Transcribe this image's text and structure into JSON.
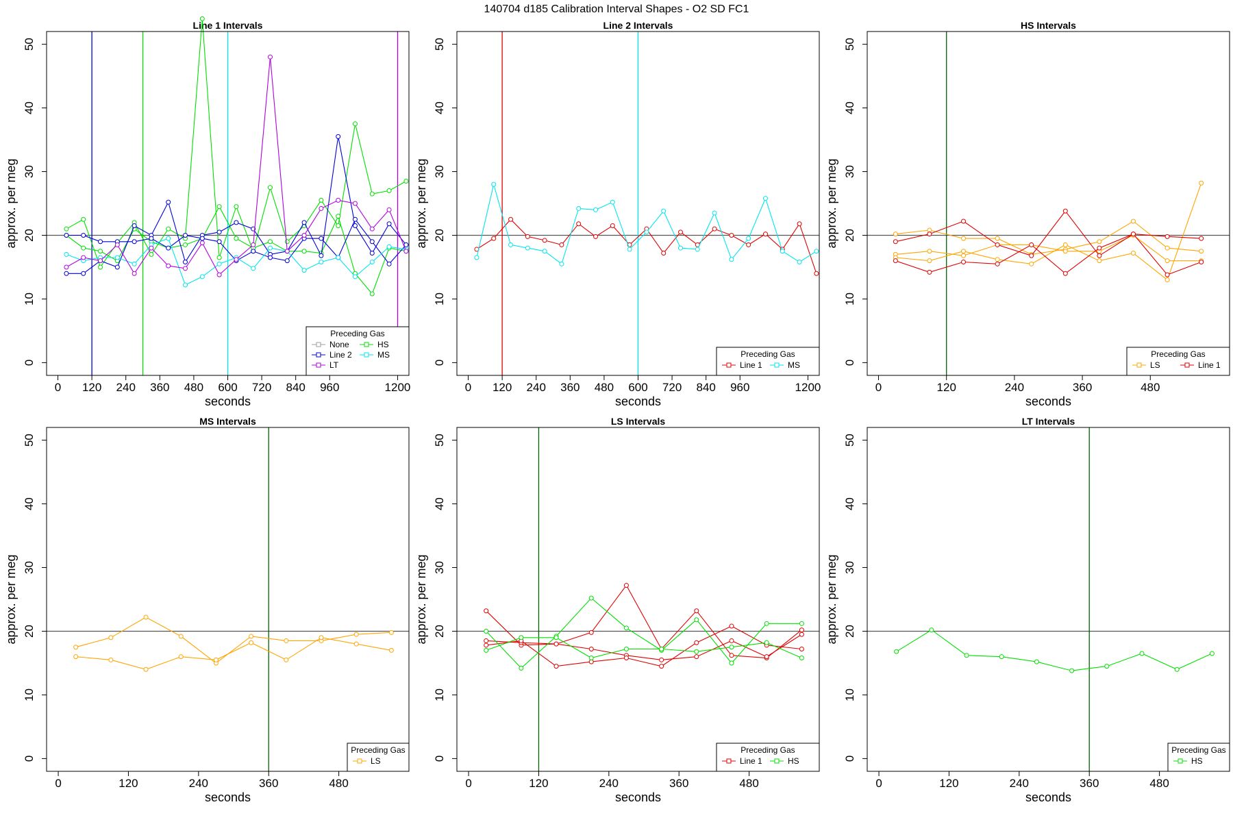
{
  "figure": {
    "title": "140704   d185   Calibration Interval Shapes - O2 SD FC1"
  },
  "colors": {
    "None": "#9e9e9e",
    "HS": "#00e000",
    "Line 2": "#0000d8",
    "MS": "#00e5ee",
    "LT": "#b000e0",
    "Line 1": "#e00000",
    "LS": "#ffa500",
    "vline_default": "#006400",
    "hline": "#555555"
  },
  "chart_data": [
    {
      "type": "line",
      "title": "Line 1 Intervals",
      "xlabel": "seconds",
      "ylabel": "approx. per meg",
      "xlim": [
        -40,
        1240
      ],
      "ylim": [
        -2,
        52
      ],
      "xticks": [
        0,
        120,
        240,
        360,
        480,
        600,
        720,
        840,
        960,
        1200
      ],
      "yticks": [
        0,
        10,
        20,
        30,
        40,
        50
      ],
      "hline": 20,
      "vlines": [
        {
          "x": 120,
          "group": "Line 2"
        },
        {
          "x": 300,
          "group": "HS"
        },
        {
          "x": 600,
          "group": "MS"
        },
        {
          "x": 1200,
          "group": "LT"
        }
      ],
      "legend": {
        "title": "Preceding Gas",
        "position": "bottom-right",
        "columns": 2,
        "entries": [
          "None",
          "HS",
          "Line 2",
          "MS",
          "LT"
        ]
      },
      "series": [
        {
          "name": "HS",
          "x": [
            30,
            90,
            150,
            210,
            270,
            330,
            390,
            450,
            510,
            570,
            630,
            690,
            750,
            810,
            870,
            930,
            990,
            1050,
            1110,
            1170,
            1230
          ],
          "y": [
            21,
            22.5,
            15,
            18.8,
            22,
            17,
            21,
            19.5,
            54,
            16.5,
            24.5,
            17.5,
            27.5,
            19,
            21.5,
            25.5,
            21.5,
            37.5,
            26.5,
            27,
            28.5
          ]
        },
        {
          "name": "HS",
          "x": [
            30,
            90,
            150,
            210,
            270,
            330,
            390,
            450,
            510,
            570,
            630,
            690,
            750,
            810,
            870,
            930,
            990,
            1050,
            1110,
            1170,
            1230
          ],
          "y": [
            20,
            18,
            17.5,
            16,
            21,
            19,
            18,
            18.5,
            19.5,
            24.5,
            19.5,
            18,
            19,
            17.5,
            17.5,
            17.2,
            23,
            14,
            10.8,
            18,
            17.5
          ]
        },
        {
          "name": "Line 2",
          "x": [
            30,
            90,
            150,
            210,
            270,
            330,
            390,
            450,
            510,
            570,
            630,
            690,
            750,
            810,
            870,
            930,
            990,
            1050,
            1110,
            1170,
            1230
          ],
          "y": [
            14,
            14,
            16,
            15,
            21.5,
            20,
            25.2,
            15.8,
            20,
            20.5,
            22,
            21,
            17,
            17.5,
            22,
            16.8,
            35.5,
            21.5,
            17.2,
            21.8,
            18.5
          ]
        },
        {
          "name": "Line 2",
          "x": [
            30,
            90,
            150,
            210,
            270,
            330,
            390,
            450,
            510,
            570,
            630,
            690,
            750,
            810,
            870,
            930,
            990,
            1050,
            1110,
            1170,
            1230
          ],
          "y": [
            20,
            20,
            19,
            19,
            19,
            19.5,
            18,
            20,
            19.5,
            19,
            16,
            17.5,
            16.5,
            16,
            19.5,
            19.5,
            16.5,
            22.5,
            19,
            15.5,
            18.5
          ]
        },
        {
          "name": "MS",
          "x": [
            30,
            90,
            150,
            210,
            270,
            330,
            390,
            450,
            510,
            570,
            630,
            690,
            750,
            810,
            870,
            930,
            990,
            1050,
            1110,
            1170,
            1230
          ],
          "y": [
            17,
            16,
            16.5,
            16.5,
            15.5,
            18.5,
            19.5,
            12.2,
            13.5,
            15.5,
            16.5,
            14.8,
            18,
            17.5,
            14.5,
            15.8,
            16.5,
            13.5,
            15.8,
            18.2,
            17.8
          ]
        },
        {
          "name": "LT",
          "x": [
            30,
            90,
            150,
            210,
            270,
            330,
            390,
            450,
            510,
            570,
            630,
            690,
            750,
            810,
            870,
            930,
            990,
            1050,
            1110,
            1170,
            1230
          ],
          "y": [
            15,
            16.5,
            16,
            18.5,
            14,
            18,
            15.2,
            14.8,
            18.8,
            13.8,
            16.2,
            18.5,
            48,
            17.5,
            20,
            24.2,
            25.5,
            25,
            21,
            24,
            17.5
          ]
        }
      ]
    },
    {
      "type": "line",
      "title": "Line 2 Intervals",
      "xlabel": "seconds",
      "ylabel": "approx. per meg",
      "xlim": [
        -40,
        1240
      ],
      "ylim": [
        -2,
        52
      ],
      "xticks": [
        0,
        120,
        240,
        360,
        480,
        600,
        720,
        840,
        960,
        1200
      ],
      "yticks": [
        0,
        10,
        20,
        30,
        40,
        50
      ],
      "hline": 20,
      "vlines": [
        {
          "x": 120,
          "group": "Line 1"
        },
        {
          "x": 600,
          "group": "MS"
        }
      ],
      "legend": {
        "title": "Preceding Gas",
        "position": "bottom-right",
        "columns": 2,
        "entries": [
          "Line 1",
          "MS"
        ]
      },
      "series": [
        {
          "name": "Line 1",
          "x": [
            30,
            90,
            150,
            210,
            270,
            330,
            390,
            450,
            510,
            570,
            630,
            690,
            750,
            810,
            870,
            930,
            990,
            1050,
            1110,
            1170,
            1230
          ],
          "y": [
            17.8,
            19.5,
            22.5,
            19.8,
            19.2,
            18.5,
            21.8,
            19.8,
            21.5,
            18.5,
            21,
            17.2,
            20.5,
            18.5,
            21,
            20,
            18.5,
            20.2,
            17.8,
            21.8,
            14
          ]
        },
        {
          "name": "MS",
          "x": [
            30,
            90,
            150,
            210,
            270,
            330,
            390,
            450,
            510,
            570,
            630,
            690,
            750,
            810,
            870,
            930,
            990,
            1050,
            1110,
            1170,
            1230
          ],
          "y": [
            16.5,
            28,
            18.5,
            18,
            17.5,
            15.5,
            24.2,
            24,
            25.2,
            17.8,
            20.5,
            23.8,
            18,
            17.8,
            23.5,
            16.2,
            19.5,
            25.8,
            17.5,
            15.8,
            17.5
          ]
        }
      ]
    },
    {
      "type": "line",
      "title": "HS Intervals",
      "xlabel": "seconds",
      "ylabel": "approx. per meg",
      "xlim": [
        -20,
        620
      ],
      "ylim": [
        -2,
        52
      ],
      "xticks": [
        0,
        120,
        240,
        360,
        480
      ],
      "yticks": [
        0,
        10,
        20,
        30,
        40,
        50
      ],
      "hline": 20,
      "vlines": [
        {
          "x": 120,
          "group": "vline_default"
        }
      ],
      "legend": {
        "title": "Preceding Gas",
        "position": "bottom-right",
        "columns": 2,
        "entries": [
          "LS",
          "Line 1"
        ]
      },
      "series": [
        {
          "name": "LS",
          "x": [
            30,
            90,
            150,
            210,
            270,
            330,
            390,
            450,
            510,
            570
          ],
          "y": [
            20.2,
            20.8,
            19.5,
            19.5,
            17,
            17.8,
            19,
            22.2,
            18,
            17.5
          ]
        },
        {
          "name": "LS",
          "x": [
            30,
            90,
            150,
            210,
            270,
            330,
            390,
            450,
            510,
            570
          ],
          "y": [
            17,
            17.5,
            16.8,
            18.5,
            18.5,
            17.5,
            17.5,
            20,
            16,
            16
          ]
        },
        {
          "name": "LS",
          "x": [
            30,
            90,
            150,
            210,
            270,
            330,
            390,
            450,
            510,
            570
          ],
          "y": [
            16.5,
            16,
            17.5,
            16.2,
            15.5,
            18.5,
            16,
            17.2,
            13,
            28.2
          ]
        },
        {
          "name": "Line 1",
          "x": [
            30,
            90,
            150,
            210,
            270,
            330,
            390,
            450,
            510,
            570
          ],
          "y": [
            19,
            20.2,
            22.2,
            18.5,
            16.8,
            23.8,
            16.8,
            20.2,
            19.8,
            19.5
          ]
        },
        {
          "name": "Line 1",
          "x": [
            30,
            90,
            150,
            210,
            270,
            330,
            390,
            450,
            510,
            570
          ],
          "y": [
            16,
            14.2,
            15.8,
            15.5,
            18.5,
            14,
            18,
            20.2,
            13.8,
            15.8
          ]
        }
      ]
    },
    {
      "type": "line",
      "title": "MS Intervals",
      "xlabel": "seconds",
      "ylabel": "approx. per meg",
      "xlim": [
        -20,
        600
      ],
      "ylim": [
        -2,
        52
      ],
      "xticks": [
        0,
        120,
        240,
        360,
        480
      ],
      "yticks": [
        0,
        10,
        20,
        30,
        40,
        50
      ],
      "hline": 20,
      "vlines": [
        {
          "x": 360,
          "group": "vline_default"
        }
      ],
      "legend": {
        "title": "Preceding Gas",
        "position": "bottom-right",
        "columns": 1,
        "entries": [
          "LS"
        ]
      },
      "series": [
        {
          "name": "LS",
          "x": [
            30,
            90,
            150,
            210,
            270,
            330,
            390,
            450,
            510,
            570
          ],
          "y": [
            17.5,
            19,
            22.2,
            19.2,
            15,
            19.2,
            18.5,
            18.5,
            19.5,
            19.8
          ]
        },
        {
          "name": "LS",
          "x": [
            30,
            90,
            150,
            210,
            270,
            330,
            390,
            450,
            510,
            570
          ],
          "y": [
            16,
            15.5,
            14,
            16,
            15.5,
            18.2,
            15.5,
            19,
            18,
            17
          ]
        }
      ]
    },
    {
      "type": "line",
      "title": "LS Intervals",
      "xlabel": "seconds",
      "ylabel": "approx. per meg",
      "xlim": [
        -20,
        600
      ],
      "ylim": [
        -2,
        52
      ],
      "xticks": [
        0,
        120,
        240,
        360,
        480
      ],
      "yticks": [
        0,
        10,
        20,
        30,
        40,
        50
      ],
      "hline": 20,
      "vlines": [
        {
          "x": 120,
          "group": "vline_default"
        }
      ],
      "legend": {
        "title": "Preceding Gas",
        "position": "bottom-right",
        "columns": 2,
        "entries": [
          "Line 1",
          "HS"
        ]
      },
      "series": [
        {
          "name": "Line 1",
          "x": [
            30,
            90,
            150,
            210,
            270,
            330,
            390,
            450,
            510,
            570
          ],
          "y": [
            23.2,
            17.8,
            18,
            19.8,
            27.2,
            17.2,
            23.2,
            16.2,
            15.8,
            20.2
          ]
        },
        {
          "name": "Line 1",
          "x": [
            30,
            90,
            150,
            210,
            270,
            330,
            390,
            450,
            510,
            570
          ],
          "y": [
            18.5,
            18.2,
            18,
            17.2,
            16.2,
            15.5,
            16,
            18.5,
            16,
            19.5
          ]
        },
        {
          "name": "Line 1",
          "x": [
            30,
            90,
            150,
            210,
            270,
            330,
            390,
            450,
            510,
            570
          ],
          "y": [
            17.8,
            18.5,
            14.5,
            15.2,
            15.8,
            14.5,
            18.2,
            20.8,
            17.8,
            17.2
          ]
        },
        {
          "name": "HS",
          "x": [
            30,
            90,
            150,
            210,
            270,
            330,
            390,
            450,
            510,
            570
          ],
          "y": [
            20,
            14.2,
            19.2,
            25.2,
            20.5,
            17,
            21.8,
            15,
            21.2,
            21.2
          ]
        },
        {
          "name": "HS",
          "x": [
            30,
            90,
            150,
            210,
            270,
            330,
            390,
            450,
            510,
            570
          ],
          "y": [
            17,
            19,
            19,
            15.8,
            17.2,
            17.2,
            16.8,
            17.5,
            18.2,
            15.8
          ]
        }
      ]
    },
    {
      "type": "line",
      "title": "LT Intervals",
      "xlabel": "seconds",
      "ylabel": "approx. per meg",
      "xlim": [
        -20,
        600
      ],
      "ylim": [
        -2,
        52
      ],
      "xticks": [
        0,
        120,
        240,
        360,
        480
      ],
      "yticks": [
        0,
        10,
        20,
        30,
        40,
        50
      ],
      "hline": 20,
      "vlines": [
        {
          "x": 360,
          "group": "vline_default"
        }
      ],
      "legend": {
        "title": "Preceding Gas",
        "position": "bottom-right",
        "columns": 1,
        "entries": [
          "HS"
        ]
      },
      "series": [
        {
          "name": "HS",
          "x": [
            30,
            90,
            150,
            210,
            270,
            330,
            390,
            450,
            510,
            570
          ],
          "y": [
            16.8,
            20.2,
            16.2,
            16,
            15.2,
            13.8,
            14.5,
            16.5,
            14,
            16.5
          ]
        }
      ]
    }
  ]
}
